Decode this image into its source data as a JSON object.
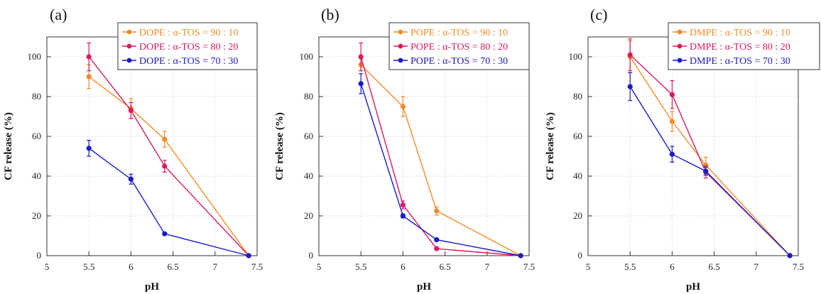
{
  "chart_data": [
    {
      "type": "line",
      "panel_label": "(a)",
      "xlabel": "pH",
      "ylabel": "CF release  (%)",
      "xlim": [
        5,
        7.5
      ],
      "ylim": [
        0,
        110
      ],
      "xticks": [
        "5",
        "5.5",
        "6",
        "6.5",
        "7",
        "7.5"
      ],
      "yticks": [
        "0",
        "20",
        "40",
        "60",
        "80",
        "100"
      ],
      "grid": true,
      "legend_position": "top-right",
      "series": [
        {
          "name": "DOPE : α-TOS = 90 : 10",
          "color": "#f28c28",
          "x": [
            5.5,
            6,
            6.4,
            7.4
          ],
          "y": [
            90,
            74,
            58.5,
            0
          ],
          "err": [
            6,
            5,
            4,
            0
          ]
        },
        {
          "name": "DOPE : α-TOS = 80 : 20",
          "color": "#d81b60",
          "x": [
            5.5,
            6,
            6.4,
            7.4
          ],
          "y": [
            100,
            73,
            45,
            0
          ],
          "err": [
            7,
            4,
            3,
            0
          ]
        },
        {
          "name": "DOPE : α-TOS = 70 : 30",
          "color": "#1a1ac8",
          "x": [
            5.5,
            6,
            6.4,
            7.4
          ],
          "y": [
            54,
            38.5,
            11,
            0
          ],
          "err": [
            4,
            2.5,
            0,
            0
          ]
        }
      ]
    },
    {
      "type": "line",
      "panel_label": "(b)",
      "xlabel": "pH",
      "ylabel": "CF release  (%)",
      "xlim": [
        5,
        7.5
      ],
      "ylim": [
        0,
        110
      ],
      "xticks": [
        "5",
        "5.5",
        "6",
        "6.5",
        "7",
        "7.5"
      ],
      "yticks": [
        "0",
        "20",
        "40",
        "60",
        "80",
        "100"
      ],
      "grid": true,
      "legend_position": "top-right",
      "series": [
        {
          "name": "POPE : α-TOS = 90 : 10",
          "color": "#f28c28",
          "x": [
            5.5,
            6,
            6.4,
            7.4
          ],
          "y": [
            96,
            75,
            22.5,
            0
          ],
          "err": [
            3,
            5,
            2,
            0
          ]
        },
        {
          "name": "POPE : α-TOS = 80 : 20",
          "color": "#d81b60",
          "x": [
            5.5,
            6,
            6.4,
            7.4
          ],
          "y": [
            100,
            25.5,
            3.5,
            0
          ],
          "err": [
            7,
            2,
            0,
            0
          ]
        },
        {
          "name": "POPE : α-TOS = 70 : 30",
          "color": "#1a1ac8",
          "x": [
            5.5,
            6,
            6.4,
            7.4
          ],
          "y": [
            86.5,
            20,
            8,
            0
          ],
          "err": [
            5,
            1,
            0,
            0
          ]
        }
      ]
    },
    {
      "type": "line",
      "panel_label": "(c)",
      "xlabel": "pH",
      "ylabel": "CF release  (%)",
      "xlim": [
        5,
        7.5
      ],
      "ylim": [
        0,
        110
      ],
      "xticks": [
        "5",
        "5.5",
        "6",
        "6.5",
        "7",
        "7.5"
      ],
      "yticks": [
        "0",
        "20",
        "40",
        "60",
        "80",
        "100"
      ],
      "grid": true,
      "legend_position": "top-right",
      "series": [
        {
          "name": "DMPE : α-TOS = 90 : 10",
          "color": "#f28c28",
          "x": [
            5.5,
            6,
            6.4,
            7.4
          ],
          "y": [
            100,
            67.5,
            45.5,
            0
          ],
          "err": [
            8,
            5,
            4,
            0
          ]
        },
        {
          "name": "DMPE : α-TOS = 80 : 20",
          "color": "#d81b60",
          "x": [
            5.5,
            6,
            6.4,
            7.4
          ],
          "y": [
            101,
            81,
            42,
            0
          ],
          "err": [
            8,
            7,
            3,
            0
          ]
        },
        {
          "name": "DMPE : α-TOS = 70 : 30",
          "color": "#1a1ac8",
          "x": [
            5.5,
            6,
            6.4,
            7.4
          ],
          "y": [
            85,
            51,
            42.5,
            0
          ],
          "err": [
            7,
            4,
            2,
            0
          ]
        }
      ]
    }
  ]
}
